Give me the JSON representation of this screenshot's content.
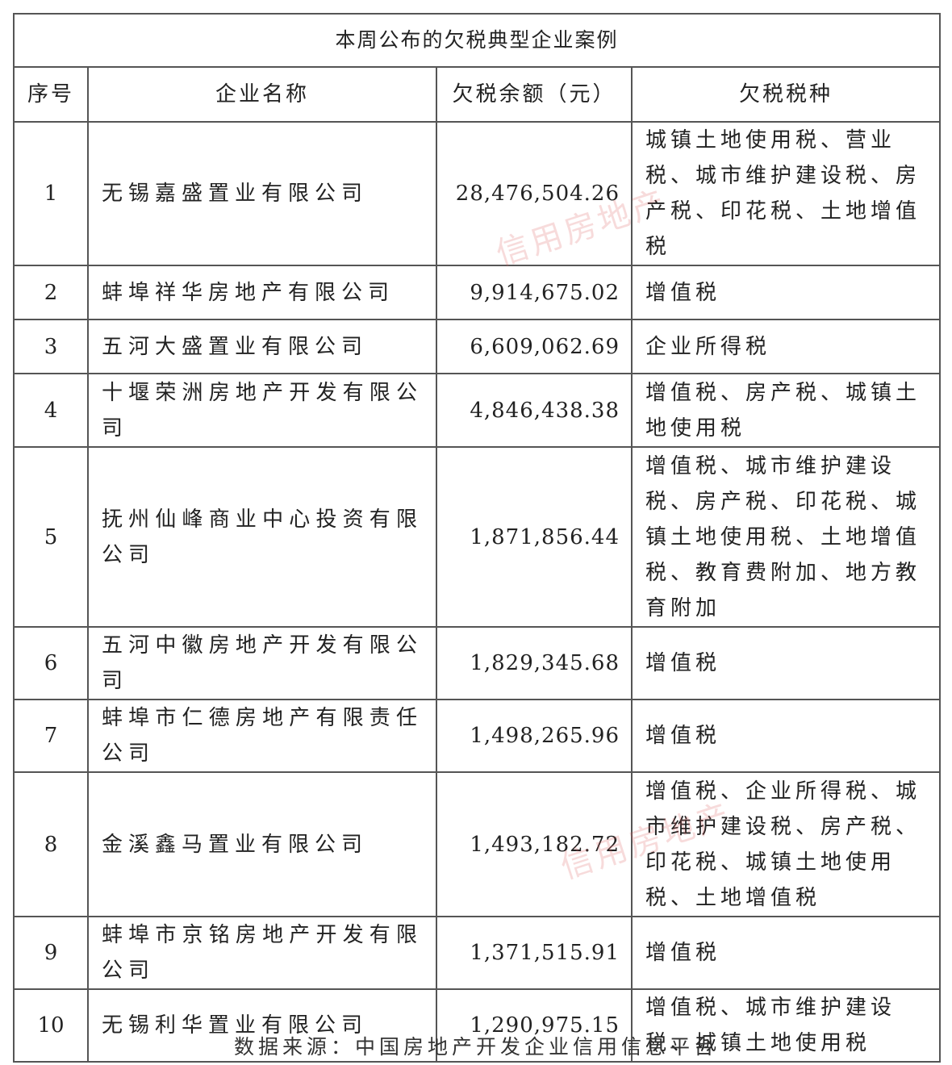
{
  "title": "本周公布的欠税典型企业案例",
  "headers": [
    "序号",
    "企业名称",
    "欠税余额（元）",
    "欠税税种"
  ],
  "rows": [
    {
      "no": "1",
      "name": "无锡嘉盛置业有限公司",
      "amount": "28,476,504.26",
      "taxes": "城镇土地使用税、营业税、城市维护建设税、房产税、印花税、土地增值税"
    },
    {
      "no": "2",
      "name": "蚌埠祥华房地产有限公司",
      "amount": "9,914,675.02",
      "taxes": "增值税"
    },
    {
      "no": "3",
      "name": "五河大盛置业有限公司",
      "amount": "6,609,062.69",
      "taxes": "企业所得税"
    },
    {
      "no": "4",
      "name": "十堰荣洲房地产开发有限公司",
      "amount": "4,846,438.38",
      "taxes": "增值税、房产税、城镇土地使用税"
    },
    {
      "no": "5",
      "name": "抚州仙峰商业中心投资有限公司",
      "amount": "1,871,856.44",
      "taxes": "增值税、城市维护建设税、房产税、印花税、城镇土地使用税、土地增值税、教育费附加、地方教育附加"
    },
    {
      "no": "6",
      "name": "五河中徽房地产开发有限公司",
      "amount": "1,829,345.68",
      "taxes": "增值税"
    },
    {
      "no": "7",
      "name": "蚌埠市仁德房地产有限责任公司",
      "amount": "1,498,265.96",
      "taxes": "增值税"
    },
    {
      "no": "8",
      "name": "金溪鑫马置业有限公司",
      "amount": "1,493,182.72",
      "taxes": "增值税、企业所得税、城市维护建设税、房产税、印花税、城镇土地使用税、土地增值税"
    },
    {
      "no": "9",
      "name": "蚌埠市京铭房地产开发有限公司",
      "amount": "1,371,515.91",
      "taxes": "增值税"
    },
    {
      "no": "10",
      "name": "无锡利华置业有限公司",
      "amount": "1,290,975.15",
      "taxes": "增值税、城市维护建设税、城镇土地使用税"
    }
  ],
  "footer": "数据来源：中国房地产开发企业信用信息平台",
  "watermark": "信用房地产",
  "colors": {
    "border": "#555555",
    "text": "#222222",
    "watermark": "#dc5a5a"
  }
}
